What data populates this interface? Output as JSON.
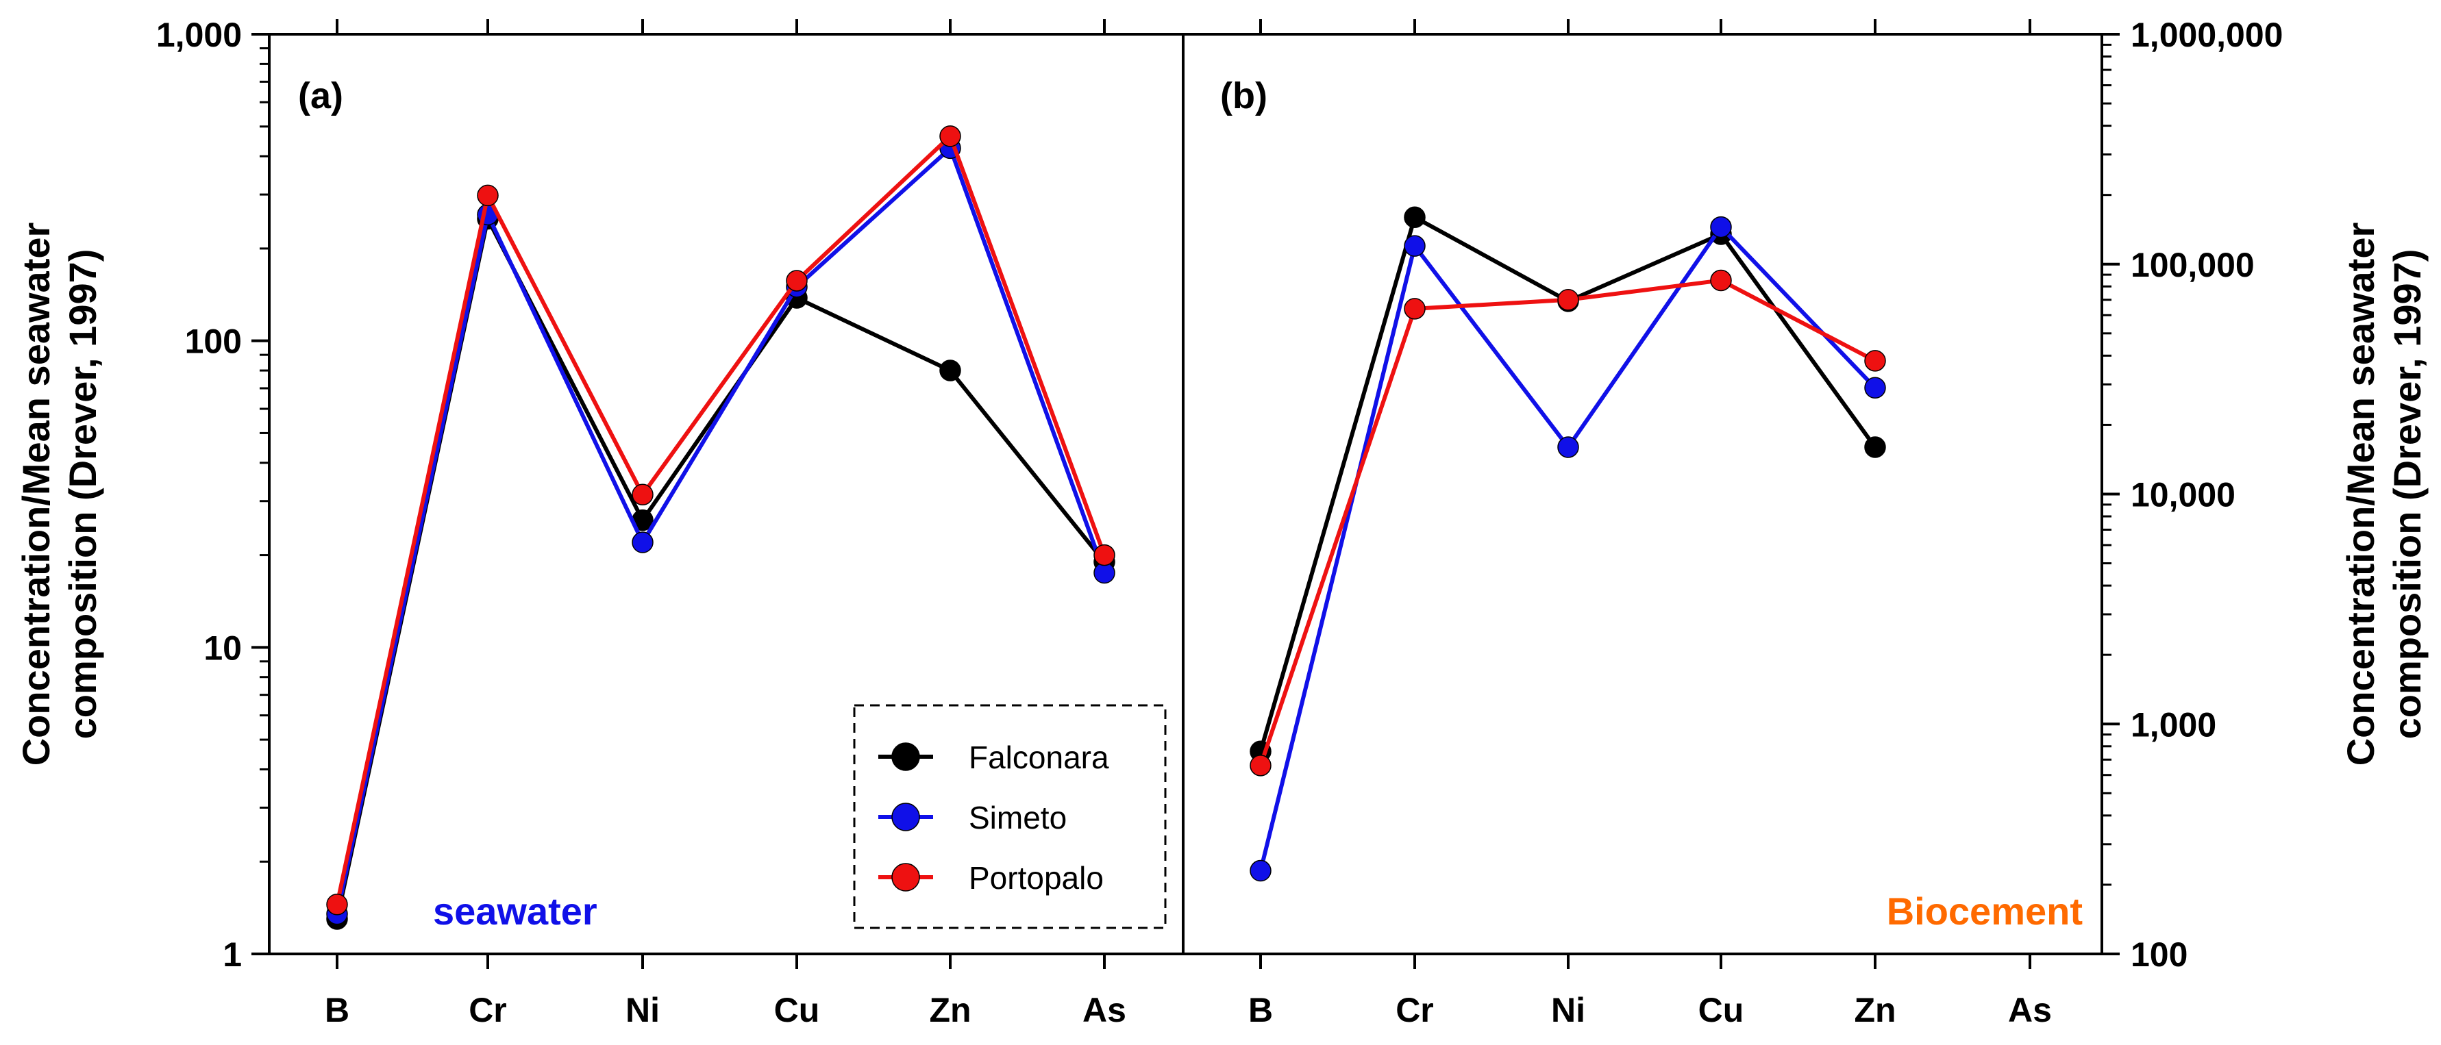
{
  "chart_data": [
    {
      "type": "line",
      "panel_label": "(a)",
      "annotation": "seawater",
      "annotation_color": "#1010e8",
      "categories": [
        "B",
        "Cr",
        "Ni",
        "Cu",
        "Zn",
        "As"
      ],
      "yscale": "log",
      "ylim": [
        1,
        1000
      ],
      "yticks": [
        1,
        10,
        100,
        1000
      ],
      "ytick_labels": [
        "1",
        "10",
        "100",
        "1,000"
      ],
      "ylabel_line1": "Concentration/Mean seawater",
      "ylabel_line2": "composition (Drever, 1997)",
      "ylabel_side": "left",
      "series": [
        {
          "name": "Falconara",
          "color": "#000000",
          "values": [
            1.3,
            250,
            26,
            138,
            80,
            19
          ]
        },
        {
          "name": "Simeto",
          "color": "#1010e8",
          "values": [
            1.35,
            258,
            22,
            150,
            425,
            17.5
          ]
        },
        {
          "name": "Portopalo",
          "color": "#ee1111",
          "values": [
            1.45,
            298,
            31.5,
            157,
            465,
            20
          ]
        }
      ],
      "legend": {
        "position": "bottom-right",
        "entries": [
          "Falconara",
          "Simeto",
          "Portopalo"
        ]
      }
    },
    {
      "type": "line",
      "panel_label": "(b)",
      "annotation": "Biocement",
      "annotation_color": "#ff6a00",
      "categories": [
        "B",
        "Cr",
        "Ni",
        "Cu",
        "Zn",
        "As"
      ],
      "yscale": "log",
      "ylim": [
        100,
        1000000
      ],
      "yticks": [
        100,
        1000,
        10000,
        100000,
        1000000
      ],
      "ytick_labels": [
        "100",
        "1,000",
        "10,000",
        "100,000",
        "1,000,000"
      ],
      "ylabel_line1": "Concentration/Mean seawater",
      "ylabel_line2": "composition (Drever, 1997)",
      "ylabel_side": "right",
      "series": [
        {
          "name": "Falconara",
          "color": "#000000",
          "values": [
            760,
            160000,
            69000,
            null,
            null,
            null
          ],
          "path_values": [
            760,
            160000,
            69000,
            135000,
            16000,
            null
          ]
        },
        {
          "name": "Simeto",
          "color": "#1010e8",
          "values": [
            230,
            120000,
            16000,
            145000,
            29000,
            null
          ]
        },
        {
          "name": "Portopalo",
          "color": "#ee1111",
          "values": [
            660,
            64000,
            70000,
            85000,
            38000,
            null
          ]
        }
      ]
    }
  ]
}
